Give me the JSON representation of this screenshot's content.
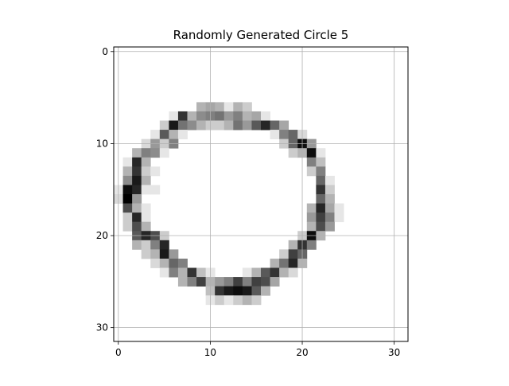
{
  "chart_data": {
    "type": "heatmap",
    "title": "Randomly Generated Circle 5",
    "xlabel": "",
    "ylabel": "",
    "grid_size": 32,
    "xlim": [
      -0.5,
      31.5
    ],
    "ylim": [
      31.5,
      -0.5
    ],
    "y_axis_inverted": true,
    "grid": true,
    "colormap": "gray_r",
    "x_ticks": [
      0,
      10,
      20,
      30
    ],
    "y_ticks": [
      0,
      10,
      20,
      30
    ],
    "x_tick_labels": [
      "0",
      "10",
      "20",
      "30"
    ],
    "y_tick_labels": [
      "0",
      "10",
      "20",
      "30"
    ],
    "nonzero_cells": [
      [
        6,
        9,
        0.3
      ],
      [
        6,
        10,
        0.35
      ],
      [
        6,
        11,
        0.3
      ],
      [
        6,
        12,
        0.1
      ],
      [
        6,
        13,
        0.3
      ],
      [
        6,
        14,
        0.2
      ],
      [
        7,
        6,
        0.1
      ],
      [
        7,
        7,
        0.8
      ],
      [
        7,
        8,
        0.3
      ],
      [
        7,
        9,
        0.45
      ],
      [
        7,
        10,
        0.5
      ],
      [
        7,
        11,
        0.55
      ],
      [
        7,
        12,
        0.4
      ],
      [
        7,
        13,
        0.5
      ],
      [
        7,
        14,
        0.3
      ],
      [
        7,
        15,
        0.35
      ],
      [
        7,
        16,
        0.1
      ],
      [
        8,
        5,
        0.2
      ],
      [
        8,
        6,
        0.9
      ],
      [
        8,
        7,
        0.55
      ],
      [
        8,
        8,
        0.45
      ],
      [
        8,
        9,
        0.3
      ],
      [
        8,
        10,
        0.2
      ],
      [
        8,
        11,
        0.2
      ],
      [
        8,
        12,
        0.3
      ],
      [
        8,
        13,
        0.55
      ],
      [
        8,
        14,
        0.4
      ],
      [
        8,
        15,
        0.65
      ],
      [
        8,
        16,
        0.85
      ],
      [
        8,
        17,
        0.6
      ],
      [
        8,
        18,
        0.35
      ],
      [
        9,
        4,
        0.1
      ],
      [
        9,
        5,
        0.65
      ],
      [
        9,
        6,
        0.3
      ],
      [
        9,
        7,
        0.1
      ],
      [
        9,
        17,
        0.1
      ],
      [
        9,
        18,
        0.5
      ],
      [
        9,
        19,
        0.6
      ],
      [
        9,
        20,
        0.15
      ],
      [
        10,
        3,
        0.15
      ],
      [
        10,
        4,
        0.4
      ],
      [
        10,
        5,
        0.2
      ],
      [
        10,
        6,
        0.5
      ],
      [
        10,
        18,
        0.2
      ],
      [
        10,
        19,
        0.6
      ],
      [
        10,
        20,
        0.95
      ],
      [
        10,
        21,
        0.4
      ],
      [
        11,
        2,
        0.3
      ],
      [
        11,
        3,
        0.5
      ],
      [
        11,
        4,
        0.45
      ],
      [
        11,
        5,
        0.1
      ],
      [
        11,
        19,
        0.2
      ],
      [
        11,
        20,
        0.3
      ],
      [
        11,
        21,
        0.95
      ],
      [
        11,
        22,
        0.1
      ],
      [
        12,
        1,
        0.1
      ],
      [
        12,
        2,
        0.85
      ],
      [
        12,
        3,
        0.3
      ],
      [
        12,
        21,
        0.5
      ],
      [
        12,
        22,
        0.25
      ],
      [
        13,
        1,
        0.3
      ],
      [
        13,
        2,
        0.8
      ],
      [
        13,
        3,
        0.2
      ],
      [
        13,
        4,
        0.1
      ],
      [
        13,
        21,
        0.2
      ],
      [
        13,
        22,
        0.5
      ],
      [
        14,
        1,
        0.45
      ],
      [
        14,
        2,
        0.9
      ],
      [
        14,
        3,
        0.3
      ],
      [
        14,
        22,
        0.6
      ],
      [
        14,
        23,
        0.1
      ],
      [
        15,
        0,
        0.1
      ],
      [
        15,
        1,
        0.95
      ],
      [
        15,
        2,
        0.85
      ],
      [
        15,
        3,
        0.1
      ],
      [
        15,
        4,
        0.1
      ],
      [
        15,
        22,
        0.8
      ],
      [
        15,
        23,
        0.2
      ],
      [
        16,
        0,
        0.15
      ],
      [
        16,
        1,
        1.0
      ],
      [
        16,
        2,
        0.4
      ],
      [
        16,
        22,
        0.6
      ],
      [
        16,
        23,
        0.3
      ],
      [
        17,
        1,
        0.7
      ],
      [
        17,
        2,
        0.3
      ],
      [
        17,
        3,
        0.1
      ],
      [
        17,
        21,
        0.3
      ],
      [
        17,
        22,
        0.85
      ],
      [
        17,
        23,
        0.35
      ],
      [
        17,
        24,
        0.1
      ],
      [
        18,
        1,
        0.2
      ],
      [
        18,
        2,
        0.85
      ],
      [
        18,
        3,
        0.1
      ],
      [
        18,
        21,
        0.4
      ],
      [
        18,
        22,
        0.75
      ],
      [
        18,
        23,
        0.5
      ],
      [
        18,
        24,
        0.1
      ],
      [
        19,
        1,
        0.2
      ],
      [
        19,
        2,
        0.7
      ],
      [
        19,
        3,
        0.3
      ],
      [
        19,
        21,
        0.3
      ],
      [
        19,
        22,
        0.7
      ],
      [
        19,
        23,
        0.4
      ],
      [
        20,
        2,
        0.65
      ],
      [
        20,
        3,
        0.85
      ],
      [
        20,
        4,
        0.7
      ],
      [
        20,
        5,
        0.2
      ],
      [
        20,
        20,
        0.2
      ],
      [
        20,
        21,
        0.95
      ],
      [
        20,
        22,
        0.3
      ],
      [
        21,
        2,
        0.3
      ],
      [
        21,
        3,
        0.2
      ],
      [
        21,
        4,
        0.5
      ],
      [
        21,
        5,
        0.85
      ],
      [
        21,
        19,
        0.3
      ],
      [
        21,
        20,
        0.8
      ],
      [
        21,
        21,
        0.5
      ],
      [
        22,
        3,
        0.2
      ],
      [
        22,
        4,
        0.3
      ],
      [
        22,
        5,
        0.9
      ],
      [
        22,
        6,
        0.4
      ],
      [
        22,
        18,
        0.2
      ],
      [
        22,
        19,
        0.75
      ],
      [
        22,
        20,
        0.6
      ],
      [
        23,
        4,
        0.15
      ],
      [
        23,
        5,
        0.3
      ],
      [
        23,
        6,
        0.6
      ],
      [
        23,
        7,
        0.5
      ],
      [
        23,
        17,
        0.3
      ],
      [
        23,
        18,
        0.55
      ],
      [
        23,
        19,
        0.85
      ],
      [
        23,
        20,
        0.3
      ],
      [
        24,
        5,
        0.1
      ],
      [
        24,
        6,
        0.5
      ],
      [
        24,
        7,
        0.3
      ],
      [
        24,
        8,
        0.8
      ],
      [
        24,
        9,
        0.25
      ],
      [
        24,
        10,
        0.1
      ],
      [
        24,
        14,
        0.1
      ],
      [
        24,
        15,
        0.3
      ],
      [
        24,
        16,
        0.65
      ],
      [
        24,
        17,
        0.8
      ],
      [
        24,
        18,
        0.3
      ],
      [
        24,
        19,
        0.15
      ],
      [
        25,
        7,
        0.3
      ],
      [
        25,
        8,
        0.5
      ],
      [
        25,
        9,
        0.75
      ],
      [
        25,
        10,
        0.3
      ],
      [
        25,
        11,
        0.4
      ],
      [
        25,
        12,
        0.5
      ],
      [
        25,
        13,
        0.75
      ],
      [
        25,
        14,
        0.5
      ],
      [
        25,
        15,
        0.75
      ],
      [
        25,
        16,
        0.7
      ],
      [
        25,
        17,
        0.35
      ],
      [
        26,
        10,
        0.25
      ],
      [
        26,
        11,
        0.8
      ],
      [
        26,
        12,
        0.9
      ],
      [
        26,
        13,
        0.95
      ],
      [
        26,
        14,
        0.9
      ],
      [
        26,
        15,
        0.65
      ],
      [
        26,
        16,
        0.3
      ],
      [
        27,
        10,
        0.1
      ],
      [
        27,
        11,
        0.2
      ],
      [
        27,
        12,
        0.1
      ],
      [
        27,
        13,
        0.2
      ],
      [
        27,
        14,
        0.3
      ],
      [
        27,
        15,
        0.2
      ]
    ]
  }
}
